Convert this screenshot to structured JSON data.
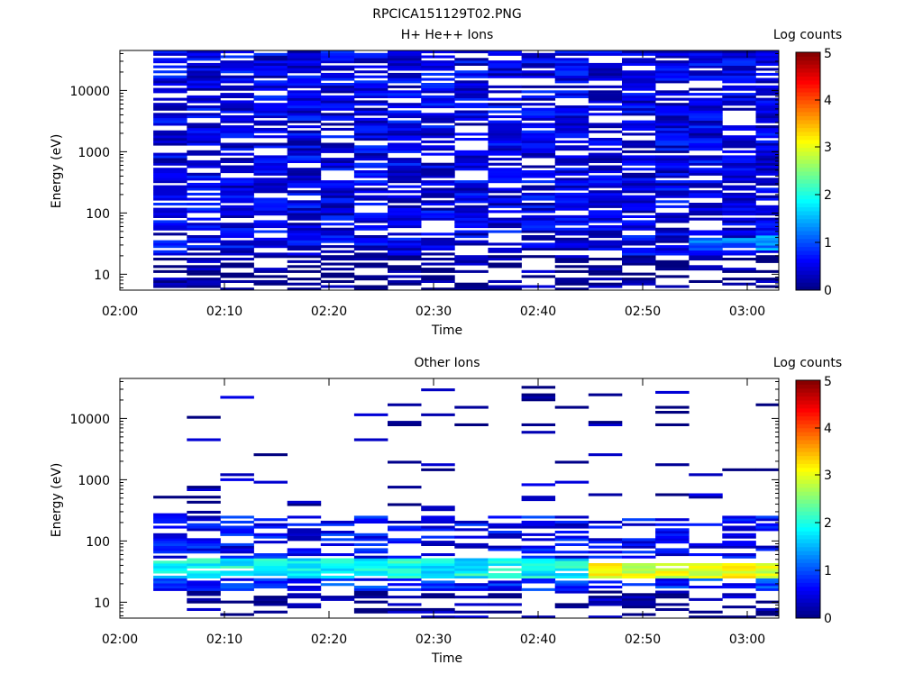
{
  "figure": {
    "title": "RPCICA151129T02.PNG"
  },
  "colors": {
    "colormap": [
      "#00007f",
      "#0000ff",
      "#007fff",
      "#00ffff",
      "#7fff7f",
      "#ffff00",
      "#ff7f00",
      "#ff0000",
      "#7f0000"
    ]
  },
  "chart_data": [
    {
      "type": "heatmap",
      "title": "H+ He++ Ions",
      "xlabel": "Time",
      "ylabel": "Energy (eV)",
      "x_tick_labels": [
        "02:00",
        "02:10",
        "02:20",
        "02:30",
        "02:40",
        "02:50",
        "03:00"
      ],
      "xlim": [
        "02:00",
        "03:03"
      ],
      "y_scale": "log",
      "y_tick_labels": [
        "10",
        "100",
        "1000",
        "10000"
      ],
      "ylim": [
        5.5,
        45000
      ],
      "colorbar": {
        "label": "Log counts",
        "range": [
          0,
          5
        ],
        "tick_labels": [
          "0",
          "1",
          "2",
          "3",
          "4",
          "5"
        ]
      },
      "time_bins": [
        "02:03:12",
        "02:06:24",
        "02:09:36",
        "02:12:48",
        "02:16:00",
        "02:19:12",
        "02:22:24",
        "02:25:36",
        "02:28:48",
        "02:32:00",
        "02:35:12",
        "02:38:24",
        "02:41:36",
        "02:44:48",
        "02:48:00",
        "02:51:12",
        "02:54:24",
        "02:57:36",
        "03:00:48"
      ],
      "energy_range_eV": [
        5.5,
        45000
      ],
      "energy_bins": 96,
      "bands": [
        {
          "time_from": "02:03:12",
          "time_to": "03:03:00",
          "energy_from": 5.5,
          "energy_to": 45000,
          "log_counts": 0.5,
          "coverage": 0.75
        },
        {
          "time_from": "03:00:48",
          "time_to": "03:03:00",
          "energy_from": 25,
          "energy_to": 45,
          "log_counts": 1.4,
          "coverage": 0.9
        },
        {
          "time_from": "02:54:24",
          "time_to": "03:00:48",
          "energy_from": 25,
          "energy_to": 40,
          "log_counts": 1.1,
          "coverage": 0.8
        },
        {
          "time_from": "02:03:12",
          "time_to": "03:03:00",
          "energy_from": 5.5,
          "energy_to": 20,
          "log_counts": 0.05,
          "coverage": 0.55
        }
      ]
    },
    {
      "type": "heatmap",
      "title": "Other Ions",
      "xlabel": "Time",
      "ylabel": "Energy (eV)",
      "x_tick_labels": [
        "02:00",
        "02:10",
        "02:20",
        "02:30",
        "02:40",
        "02:50",
        "03:00"
      ],
      "xlim": [
        "02:00",
        "03:03"
      ],
      "y_scale": "log",
      "y_tick_labels": [
        "10",
        "100",
        "1000",
        "10000"
      ],
      "ylim": [
        5.5,
        45000
      ],
      "colorbar": {
        "label": "Log counts",
        "range": [
          0,
          5
        ],
        "tick_labels": [
          "0",
          "1",
          "2",
          "3",
          "4",
          "5"
        ]
      },
      "time_bins": [
        "02:03:12",
        "02:06:24",
        "02:09:36",
        "02:12:48",
        "02:16:00",
        "02:19:12",
        "02:22:24",
        "02:25:36",
        "02:28:48",
        "02:32:00",
        "02:35:12",
        "02:38:24",
        "02:41:36",
        "02:44:48",
        "02:48:00",
        "02:51:12",
        "02:54:24",
        "02:57:36",
        "03:00:48"
      ],
      "energy_range_eV": [
        5.5,
        45000
      ],
      "energy_bins": 96,
      "bands": [
        {
          "time_from": "02:03:12",
          "time_to": "03:03:00",
          "energy_from": 200,
          "energy_to": 40000,
          "log_counts": 0.15,
          "coverage": 0.06
        },
        {
          "time_from": "02:03:12",
          "time_to": "03:03:00",
          "energy_from": 50,
          "energy_to": 250,
          "log_counts": 0.6,
          "coverage": 0.55
        },
        {
          "time_from": "02:03:12",
          "time_to": "02:44:48",
          "energy_from": 25,
          "energy_to": 50,
          "log_counts": 1.9,
          "coverage": 0.9
        },
        {
          "time_from": "02:44:48",
          "time_to": "03:03:00",
          "energy_from": 22,
          "energy_to": 45,
          "log_counts": 3.0,
          "coverage": 0.95
        },
        {
          "time_from": "02:03:12",
          "time_to": "03:03:00",
          "energy_from": 15,
          "energy_to": 25,
          "log_counts": 0.8,
          "coverage": 0.7
        },
        {
          "time_from": "02:03:12",
          "time_to": "03:03:00",
          "energy_from": 5.5,
          "energy_to": 15,
          "log_counts": 0.1,
          "coverage": 0.35
        }
      ]
    }
  ]
}
